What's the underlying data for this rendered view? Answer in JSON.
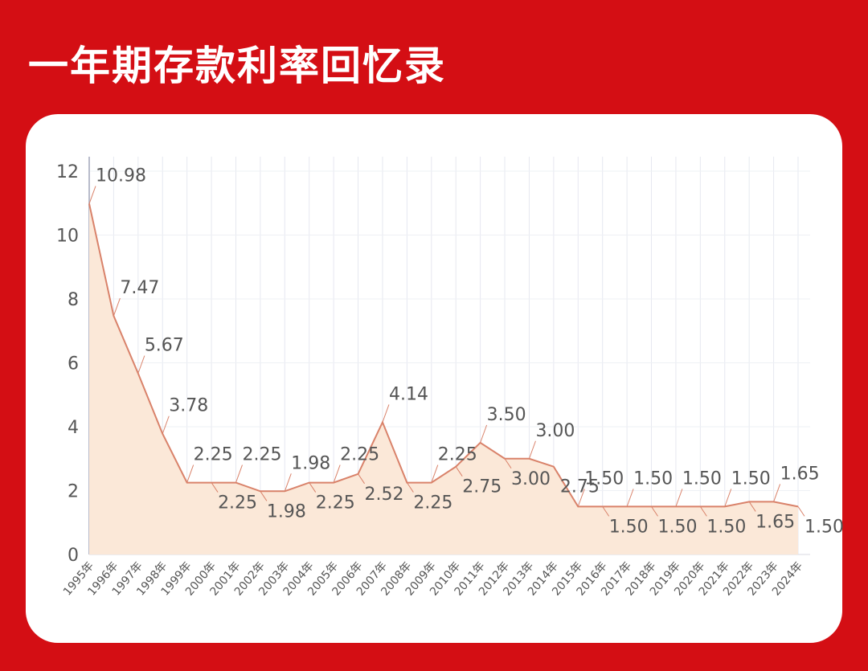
{
  "chart_data": {
    "type": "line",
    "title": "一年期存款利率回忆录",
    "categories": [
      "1995年",
      "1996年",
      "1997年",
      "1998年",
      "1999年",
      "2000年",
      "2001年",
      "2002年",
      "2003年",
      "2004年",
      "2005年",
      "2006年",
      "2007年",
      "2008年",
      "2009年",
      "2010年",
      "2011年",
      "2012年",
      "2013年",
      "2014年",
      "2015年",
      "2016年",
      "2017年",
      "2018年",
      "2019年",
      "2020年",
      "2021年",
      "2022年",
      "2023年",
      "2024年"
    ],
    "values": [
      10.98,
      7.47,
      5.67,
      3.78,
      2.25,
      2.25,
      2.25,
      1.98,
      1.98,
      2.25,
      2.25,
      2.52,
      4.14,
      2.25,
      2.25,
      2.75,
      3.5,
      3,
      3,
      2.75,
      1.5,
      1.5,
      1.5,
      1.5,
      1.5,
      1.5,
      1.5,
      1.65,
      1.65,
      1.5
    ],
    "value_labels": [
      "10.98",
      "7.47",
      "5.67",
      "3.78",
      "2.25",
      "2.25",
      "2.25",
      "1.98",
      "1.98",
      "2.25",
      "2.25",
      "2.52",
      "4.14",
      "2.25",
      "2.25",
      "2.75",
      "3.50",
      "3.00",
      "3.00",
      "2.75",
      "1.50",
      "1.50",
      "1.50",
      "1.50",
      "1.50",
      "1.50",
      "1.50",
      "1.65",
      "1.65",
      "1.50"
    ],
    "color": "#d9826a",
    "fill": "#fbe8d8",
    "ylim": [
      0,
      12
    ],
    "yticks": [
      0,
      2,
      4,
      6,
      8,
      10,
      12
    ],
    "grid": true
  }
}
